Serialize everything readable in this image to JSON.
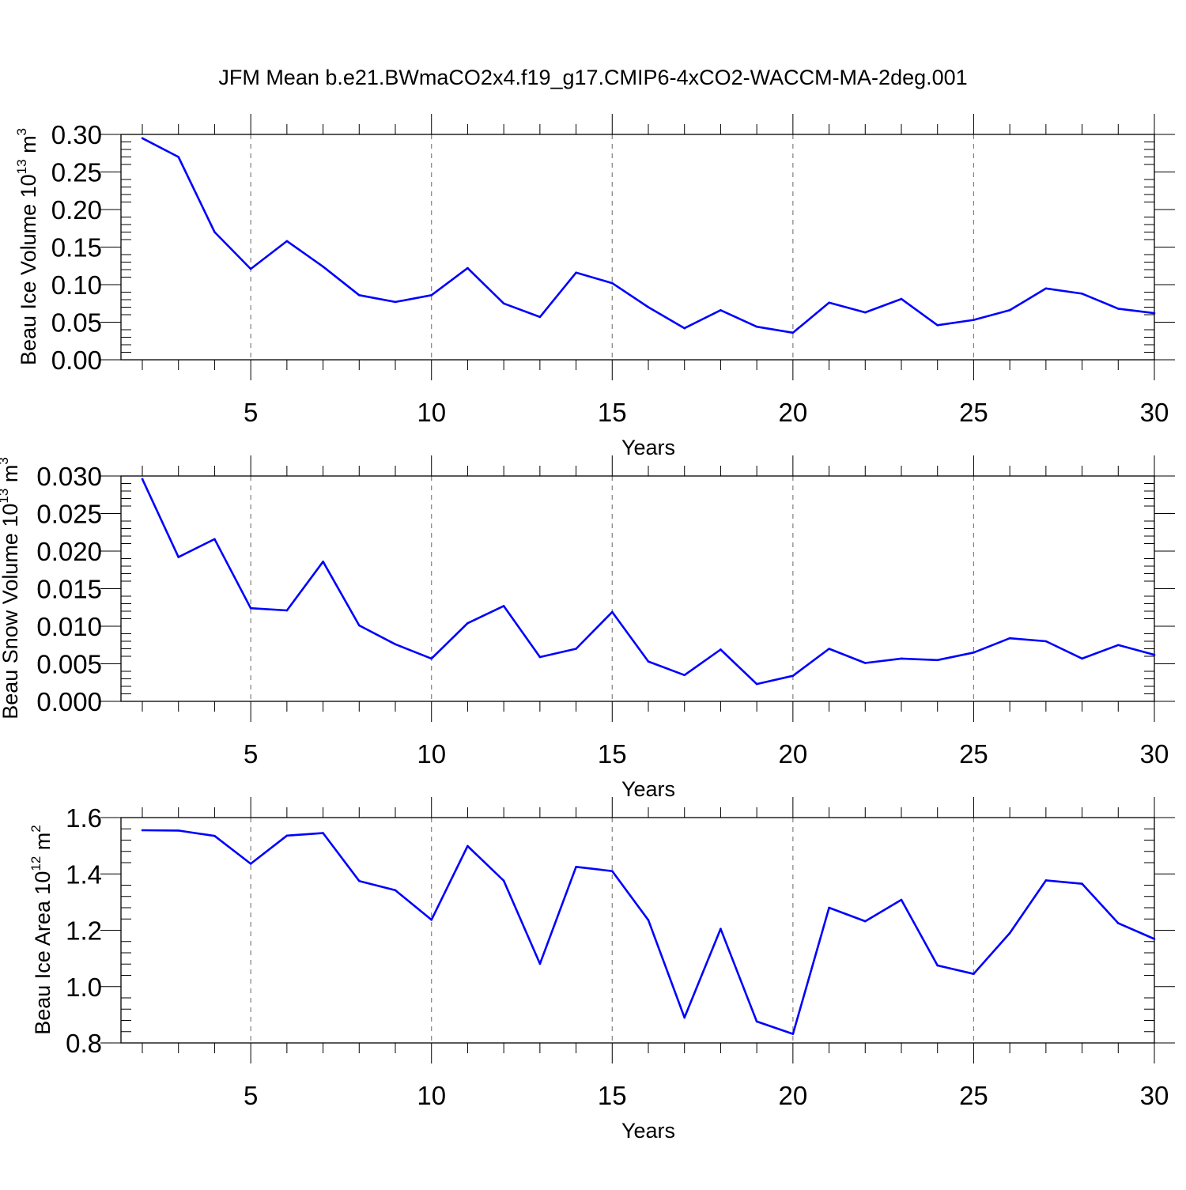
{
  "title": "JFM Mean b.e21.BWmaCO2x4.f19_g17.CMIP6-4xCO2-WACCM-MA-2deg.001",
  "colors": {
    "line": "#0000ff",
    "axis": "#000000",
    "grid": "#808080",
    "background": "#ffffff"
  },
  "chart_data": [
    {
      "type": "line",
      "title": "",
      "xlabel": "Years",
      "ylabel": "Beau Ice Volume 10^13 m^3",
      "ylabel_parts": [
        "Beau Ice Volume 10",
        "13",
        " m",
        "3"
      ],
      "xlim": [
        2,
        30
      ],
      "ylim": [
        0,
        0.3
      ],
      "xticks": [
        5,
        10,
        15,
        20,
        25,
        30
      ],
      "yticks": [
        "0.00",
        "0.05",
        "0.10",
        "0.15",
        "0.20",
        "0.25",
        "0.30"
      ],
      "grid": "vertical dashed at major x ticks",
      "series": [
        {
          "x": [
            2,
            3,
            4,
            5,
            6,
            7,
            8,
            9,
            10,
            11,
            12,
            13,
            14,
            15,
            16,
            17,
            18,
            19,
            20,
            21,
            22,
            23,
            24,
            25,
            26,
            27,
            28,
            29,
            30
          ],
          "values": [
            0.295,
            0.27,
            0.17,
            0.121,
            0.158,
            0.124,
            0.086,
            0.077,
            0.086,
            0.122,
            0.075,
            0.057,
            0.116,
            0.102,
            0.07,
            0.042,
            0.066,
            0.044,
            0.036,
            0.076,
            0.063,
            0.081,
            0.046,
            0.053,
            0.066,
            0.095,
            0.088,
            0.068,
            0.062
          ]
        }
      ]
    },
    {
      "type": "line",
      "title": "",
      "xlabel": "Years",
      "ylabel": "Beau Snow Volume 10^13 m^3",
      "ylabel_parts": [
        "Beau Snow Volume 10",
        "13",
        " m",
        "3"
      ],
      "xlim": [
        2,
        30
      ],
      "ylim": [
        0,
        0.03
      ],
      "xticks": [
        5,
        10,
        15,
        20,
        25,
        30
      ],
      "yticks": [
        "0.000",
        "0.005",
        "0.010",
        "0.015",
        "0.020",
        "0.025",
        "0.030"
      ],
      "grid": "vertical dashed at major x ticks",
      "series": [
        {
          "x": [
            2,
            3,
            4,
            5,
            6,
            7,
            8,
            9,
            10,
            11,
            12,
            13,
            14,
            15,
            16,
            17,
            18,
            19,
            20,
            21,
            22,
            23,
            24,
            25,
            26,
            27,
            28,
            29,
            30
          ],
          "values": [
            0.0296,
            0.0192,
            0.0216,
            0.0124,
            0.0121,
            0.0186,
            0.0101,
            0.0076,
            0.0057,
            0.0104,
            0.0127,
            0.0059,
            0.007,
            0.0119,
            0.0053,
            0.0035,
            0.0069,
            0.0023,
            0.0034,
            0.007,
            0.0051,
            0.0057,
            0.0055,
            0.0065,
            0.0084,
            0.008,
            0.0057,
            0.0075,
            0.0062
          ]
        }
      ]
    },
    {
      "type": "line",
      "title": "",
      "xlabel": "Years",
      "ylabel": "Beau Ice Area 10^12 m^2",
      "ylabel_parts": [
        "Beau Ice Area 10",
        "12",
        " m",
        "2"
      ],
      "xlim": [
        2,
        30
      ],
      "ylim": [
        0.8,
        1.6
      ],
      "xticks": [
        5,
        10,
        15,
        20,
        25,
        30
      ],
      "yticks": [
        "0.8",
        "1.0",
        "1.2",
        "1.4",
        "1.6"
      ],
      "grid": "vertical dashed at major x ticks",
      "series": [
        {
          "x": [
            2,
            3,
            4,
            5,
            6,
            7,
            8,
            9,
            10,
            11,
            12,
            13,
            14,
            15,
            16,
            17,
            18,
            19,
            20,
            21,
            22,
            23,
            24,
            25,
            26,
            27,
            28,
            29,
            30
          ],
          "values": [
            1.555,
            1.554,
            1.535,
            1.436,
            1.536,
            1.545,
            1.375,
            1.342,
            1.237,
            1.499,
            1.376,
            1.081,
            1.425,
            1.41,
            1.236,
            0.89,
            1.205,
            0.876,
            0.832,
            1.28,
            1.232,
            1.308,
            1.075,
            1.045,
            1.19,
            1.377,
            1.365,
            1.225,
            1.169
          ]
        }
      ]
    }
  ]
}
